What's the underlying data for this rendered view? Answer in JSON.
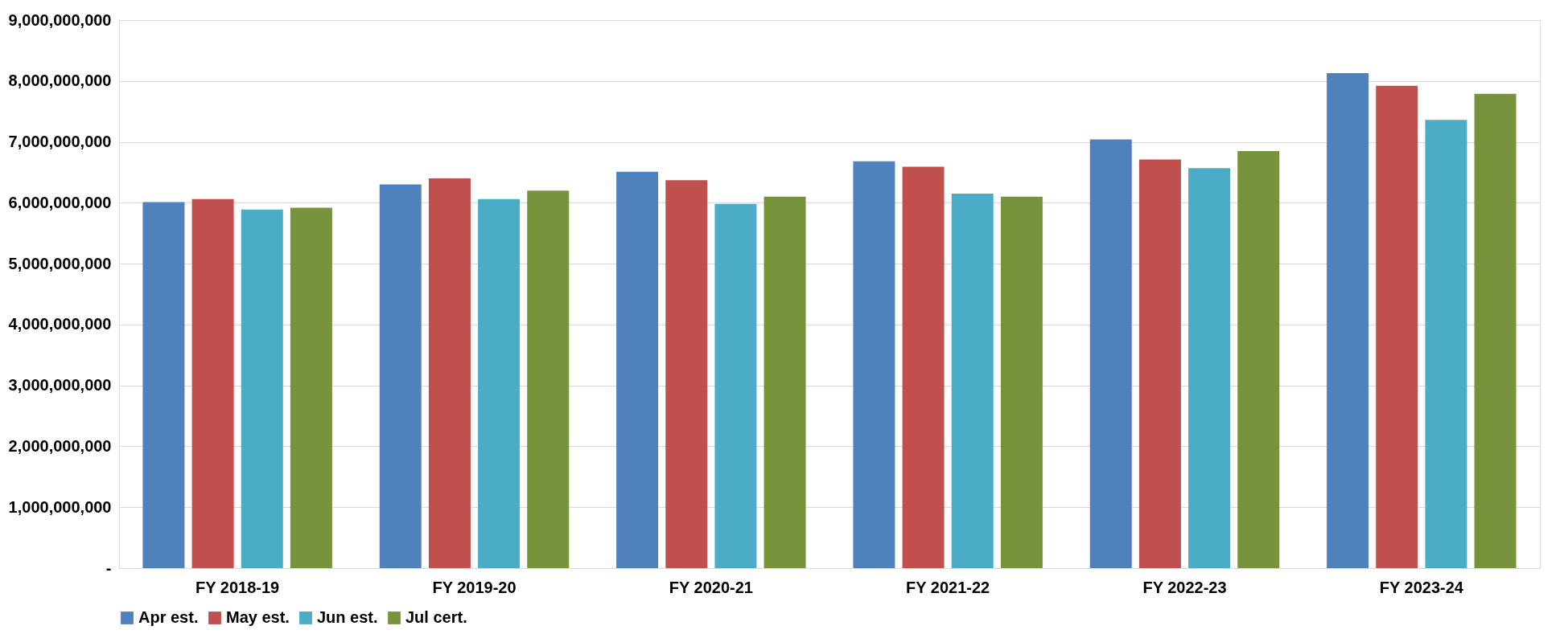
{
  "chart_data": {
    "type": "bar",
    "categories": [
      "FY 2018-19",
      "FY 2019-20",
      "FY 2020-21",
      "FY 2021-22",
      "FY 2022-23",
      "FY 2023-24"
    ],
    "series": [
      {
        "name": "Apr est.",
        "color": "#4f81bd",
        "values": [
          6010000000,
          6300000000,
          6510000000,
          6680000000,
          7040000000,
          8130000000
        ]
      },
      {
        "name": "May est.",
        "color": "#c0504d",
        "values": [
          6060000000,
          6400000000,
          6370000000,
          6590000000,
          6710000000,
          7920000000
        ]
      },
      {
        "name": "Jun est.",
        "color": "#4bacc6",
        "values": [
          5890000000,
          6060000000,
          5980000000,
          6150000000,
          6570000000,
          7360000000
        ]
      },
      {
        "name": "Jul cert.",
        "color": "#77933c",
        "values": [
          5920000000,
          6200000000,
          6100000000,
          6100000000,
          6850000000,
          7790000000
        ]
      }
    ],
    "ylim": [
      0,
      9000000000
    ],
    "yticks": [
      {
        "value": 0,
        "label": "-"
      },
      {
        "value": 1000000000,
        "label": "1,000,000,000"
      },
      {
        "value": 2000000000,
        "label": "2,000,000,000"
      },
      {
        "value": 3000000000,
        "label": "3,000,000,000"
      },
      {
        "value": 4000000000,
        "label": "4,000,000,000"
      },
      {
        "value": 5000000000,
        "label": "5,000,000,000"
      },
      {
        "value": 6000000000,
        "label": "6,000,000,000"
      },
      {
        "value": 7000000000,
        "label": "7,000,000,000"
      },
      {
        "value": 8000000000,
        "label": "8,000,000,000"
      },
      {
        "value": 9000000000,
        "label": "9,000,000,000"
      }
    ],
    "grid": "y",
    "legend": "bottom"
  }
}
